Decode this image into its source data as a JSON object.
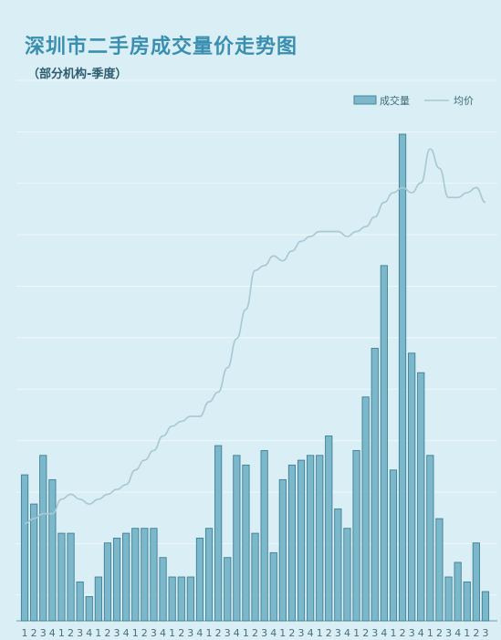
{
  "chart_data": {
    "type": "bar+line",
    "title": "深圳市二手房成交量价走势图",
    "subtitle": "（部分机构-季度）",
    "legend": {
      "position": "top-right",
      "items": [
        "成交量",
        "均价"
      ]
    },
    "categories": [
      "1",
      "2",
      "3",
      "4",
      "1",
      "2",
      "3",
      "4",
      "1",
      "2",
      "3",
      "4",
      "1",
      "2",
      "3",
      "4",
      "1",
      "2",
      "3",
      "4",
      "1",
      "2",
      "3",
      "4",
      "1",
      "2",
      "3",
      "4",
      "1",
      "2",
      "3",
      "4",
      "1",
      "2",
      "3",
      "4",
      "1",
      "2",
      "3",
      "4",
      "1",
      "2",
      "3",
      "4",
      "1",
      "2",
      "3",
      "4",
      "1",
      "2",
      "3"
    ],
    "series": [
      {
        "name": "成交量",
        "kind": "bar",
        "color": "#7bb8cb",
        "values": [
          0.3,
          0.24,
          0.34,
          0.29,
          0.18,
          0.18,
          0.08,
          0.05,
          0.09,
          0.16,
          0.17,
          0.18,
          0.19,
          0.19,
          0.19,
          0.13,
          0.09,
          0.09,
          0.09,
          0.17,
          0.19,
          0.36,
          0.13,
          0.34,
          0.32,
          0.18,
          0.35,
          0.14,
          0.29,
          0.32,
          0.33,
          0.34,
          0.34,
          0.38,
          0.23,
          0.19,
          0.35,
          0.46,
          0.56,
          0.73,
          0.31,
          1.0,
          0.55,
          0.51,
          0.34,
          0.21,
          0.09,
          0.12,
          0.08,
          0.16,
          0.06
        ]
      },
      {
        "name": "均价",
        "kind": "line",
        "color": "#a8c8d4",
        "values": [
          0.2,
          0.21,
          0.22,
          0.22,
          0.25,
          0.26,
          0.25,
          0.24,
          0.25,
          0.26,
          0.27,
          0.28,
          0.31,
          0.33,
          0.35,
          0.38,
          0.4,
          0.41,
          0.42,
          0.42,
          0.45,
          0.47,
          0.52,
          0.58,
          0.64,
          0.72,
          0.73,
          0.75,
          0.74,
          0.76,
          0.78,
          0.79,
          0.8,
          0.8,
          0.8,
          0.79,
          0.8,
          0.81,
          0.83,
          0.86,
          0.88,
          0.89,
          0.88,
          0.9,
          0.97,
          0.93,
          0.87,
          0.87,
          0.88,
          0.89,
          0.86
        ]
      }
    ],
    "ylim": [
      0,
      1
    ],
    "grid": true
  }
}
